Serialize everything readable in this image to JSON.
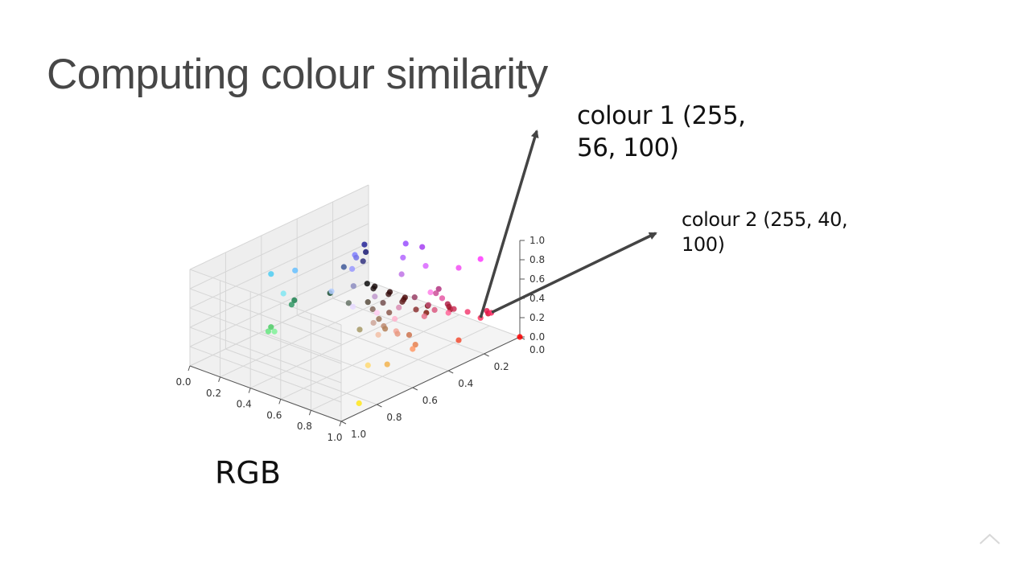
{
  "slide": {
    "title": "Computing colour similarity",
    "colour1_label": "colour 1 (255, 56, 100)",
    "colour2_label": "colour 2 (255, 40, 100)",
    "space_caption": "RGB"
  },
  "nav": {
    "icon": "chevron-up-icon"
  },
  "colors": {
    "title": "#474747",
    "arrow": "#444444",
    "grid": "#d6d6d6"
  },
  "chart_data": {
    "type": "scatter",
    "projection": "3d",
    "title": "",
    "xlabel": "",
    "ylabel": "",
    "zlabel": "",
    "xlim": [
      0,
      1
    ],
    "ylim": [
      0,
      1
    ],
    "zlim": [
      0,
      1
    ],
    "x_ticks": [
      "0.0",
      "0.2",
      "0.4",
      "0.6",
      "0.8",
      "1.0"
    ],
    "y_ticks": [
      "0.0",
      "0.2",
      "0.4",
      "0.6",
      "0.8",
      "1.0"
    ],
    "z_ticks": [
      "0.0",
      "0.2",
      "0.4",
      "0.6",
      "0.8",
      "1.0"
    ],
    "grid": true,
    "point_color_rule": "each point coloured by its own (r, g, b) coordinates",
    "points": [
      [
        1.0,
        0.0,
        0.0
      ],
      [
        0.95,
        0.3,
        0.2
      ],
      [
        0.9,
        0.5,
        0.3
      ],
      [
        1.0,
        0.6,
        0.4
      ],
      [
        0.95,
        0.7,
        0.3
      ],
      [
        1.0,
        0.9,
        0.1
      ],
      [
        1.0,
        0.85,
        0.45
      ],
      [
        0.95,
        0.65,
        0.6
      ],
      [
        1.0,
        0.7,
        0.8
      ],
      [
        0.9,
        0.45,
        0.55
      ],
      [
        1.0,
        0.22,
        0.39
      ],
      [
        1.0,
        0.16,
        0.39
      ],
      [
        0.9,
        0.1,
        0.3
      ],
      [
        0.85,
        0.05,
        0.2
      ],
      [
        0.8,
        0.2,
        0.35
      ],
      [
        0.95,
        0.25,
        0.45
      ],
      [
        1.0,
        0.4,
        0.6
      ],
      [
        0.85,
        0.35,
        0.5
      ],
      [
        0.75,
        0.3,
        0.45
      ],
      [
        0.7,
        0.15,
        0.3
      ],
      [
        0.65,
        0.1,
        0.2
      ],
      [
        0.6,
        0.05,
        0.1
      ],
      [
        0.55,
        0.2,
        0.2
      ],
      [
        0.5,
        0.1,
        0.05
      ],
      [
        0.45,
        0.05,
        0.05
      ],
      [
        0.4,
        0.15,
        0.15
      ],
      [
        0.35,
        0.1,
        0.1
      ],
      [
        0.3,
        0.05,
        0.05
      ],
      [
        0.25,
        0.1,
        0.1
      ],
      [
        0.2,
        0.05,
        0.05
      ],
      [
        0.15,
        0.1,
        0.1
      ],
      [
        0.1,
        0.05,
        0.05
      ],
      [
        0.05,
        0.05,
        0.05
      ],
      [
        0.1,
        0.3,
        0.2
      ],
      [
        0.1,
        0.5,
        0.3
      ],
      [
        0.2,
        0.6,
        0.4
      ],
      [
        0.3,
        0.8,
        0.4
      ],
      [
        0.4,
        0.9,
        0.5
      ],
      [
        0.5,
        0.95,
        0.6
      ],
      [
        0.2,
        0.2,
        0.5
      ],
      [
        0.15,
        0.15,
        0.6
      ],
      [
        0.1,
        0.1,
        0.45
      ],
      [
        0.25,
        0.35,
        0.6
      ],
      [
        0.3,
        0.8,
        0.95
      ],
      [
        0.4,
        0.75,
        1.0
      ],
      [
        0.5,
        0.5,
        1.0
      ],
      [
        0.45,
        0.45,
        0.9
      ],
      [
        0.6,
        0.6,
        1.0
      ],
      [
        0.7,
        0.8,
        1.0
      ],
      [
        0.6,
        0.3,
        1.0
      ],
      [
        0.65,
        0.25,
        0.95
      ],
      [
        0.7,
        0.4,
        1.0
      ],
      [
        0.75,
        0.45,
        0.9
      ],
      [
        0.85,
        0.4,
        1.0
      ],
      [
        1.0,
        0.22,
        1.0
      ],
      [
        0.95,
        0.3,
        0.95
      ],
      [
        1.0,
        0.5,
        0.9
      ],
      [
        1.0,
        0.8,
        0.95
      ],
      [
        0.9,
        0.85,
        1.0
      ],
      [
        0.85,
        0.55,
        0.7
      ],
      [
        0.8,
        0.65,
        0.6
      ],
      [
        0.75,
        0.55,
        0.45
      ],
      [
        0.65,
        0.6,
        0.4
      ],
      [
        0.7,
        0.5,
        0.35
      ],
      [
        0.8,
        0.45,
        0.3
      ],
      [
        0.9,
        0.6,
        0.5
      ],
      [
        0.95,
        0.75,
        0.65
      ],
      [
        0.6,
        0.45,
        0.35
      ],
      [
        0.55,
        0.35,
        0.3
      ],
      [
        0.5,
        0.4,
        0.35
      ],
      [
        0.45,
        0.3,
        0.3
      ],
      [
        0.4,
        0.45,
        0.4
      ],
      [
        0.35,
        0.3,
        0.25
      ],
      [
        0.6,
        0.25,
        0.4
      ],
      [
        0.7,
        0.2,
        0.5
      ],
      [
        0.8,
        0.3,
        0.6
      ],
      [
        0.9,
        0.35,
        0.65
      ],
      [
        0.75,
        0.6,
        0.8
      ],
      [
        0.55,
        0.55,
        0.75
      ],
      [
        0.5,
        0.9,
        0.95
      ]
    ]
  }
}
